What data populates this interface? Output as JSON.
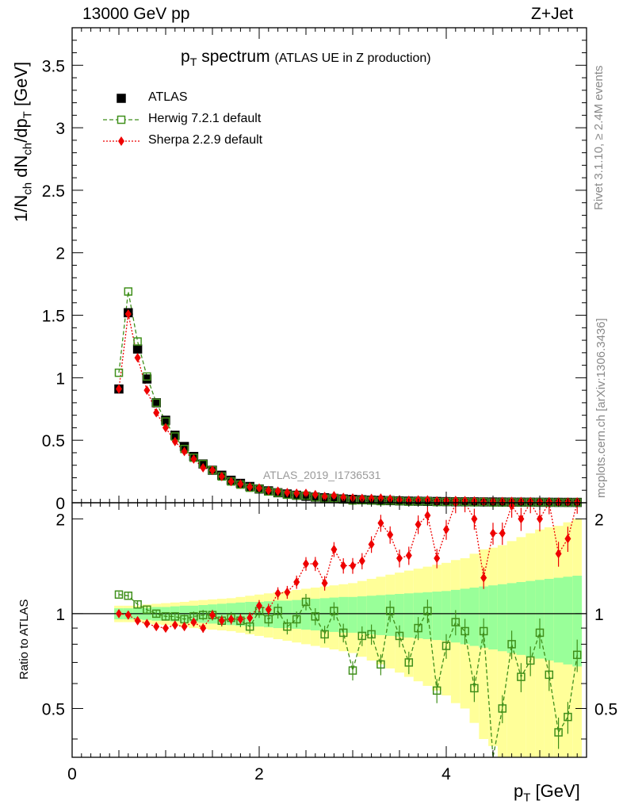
{
  "header": {
    "energy": "13000 GeV pp",
    "process": "Z+Jet"
  },
  "side_labels": {
    "rivet": "Rivet 3.1.10, ≥ 2.4M events",
    "mcplots": "mcplots.cern.ch [arXiv:1306.3436]"
  },
  "plot_title": {
    "main": "p",
    "main_sub": "T",
    "main_rest": " spectrum",
    "detail": "(ATLAS UE in Z production)"
  },
  "analysis_id": "ATLAS_2019_I1736531",
  "colors": {
    "atlas": "#000000",
    "herwig": "#3f8f1a",
    "sherpa": "#ee0000",
    "band_inner": "#99ff99",
    "band_outer": "#ffff99"
  },
  "chart_data": [
    {
      "type": "scatter",
      "title": "",
      "xlabel": "pT [GeV]",
      "ylabel": "1/Nch dNch/dpT [GeV]",
      "xlim": [
        0,
        5.5
      ],
      "ylim": [
        0,
        3.8
      ],
      "x_ticks": [
        0,
        2,
        4
      ],
      "y_ticks": [
        0,
        0.5,
        1,
        1.5,
        2,
        2.5,
        3,
        3.5
      ],
      "legend": "top-left",
      "x": [
        0.5,
        0.6,
        0.7,
        0.8,
        0.9,
        1.0,
        1.1,
        1.2,
        1.3,
        1.4,
        1.5,
        1.6,
        1.7,
        1.8,
        1.9,
        2.0,
        2.1,
        2.2,
        2.3,
        2.4,
        2.5,
        2.6,
        2.7,
        2.8,
        2.9,
        3.0,
        3.1,
        3.2,
        3.3,
        3.4,
        3.5,
        3.6,
        3.7,
        3.8,
        3.9,
        4.0,
        4.1,
        4.2,
        4.3,
        4.4,
        4.5,
        4.6,
        4.7,
        4.8,
        4.9,
        5.0,
        5.1,
        5.2,
        5.3,
        5.4
      ],
      "series": [
        {
          "name": "ATLAS",
          "values": [
            0.91,
            1.52,
            1.23,
            0.99,
            0.8,
            0.66,
            0.54,
            0.45,
            0.37,
            0.31,
            0.26,
            0.22,
            0.18,
            0.155,
            0.13,
            0.11,
            0.095,
            0.08,
            0.07,
            0.06,
            0.052,
            0.045,
            0.04,
            0.035,
            0.03,
            0.027,
            0.024,
            0.021,
            0.019,
            0.017,
            0.015,
            0.013,
            0.012,
            0.011,
            0.01,
            0.009,
            0.008,
            0.0075,
            0.007,
            0.0065,
            0.006,
            0.0055,
            0.005,
            0.0046,
            0.0042,
            0.0039,
            0.0036,
            0.0033,
            0.003,
            0.0028
          ]
        },
        {
          "name": "Herwig 7.2.1 default",
          "values": [
            1.04,
            1.69,
            1.29,
            1.01,
            0.8,
            0.65,
            0.53,
            0.43,
            0.36,
            0.31,
            0.26,
            0.21,
            0.17,
            0.145,
            0.12,
            0.11,
            0.09,
            0.08,
            0.064,
            0.057,
            0.057,
            0.044,
            0.034,
            0.036,
            0.026,
            0.018,
            0.02,
            0.018,
            0.013,
            0.017,
            0.013,
            0.009,
            0.011,
            0.011,
            0.006,
            0.007,
            0.0075,
            0.0066,
            0.004,
            0.0057,
            0.002,
            0.0027,
            0.004,
            0.0029,
            0.003,
            0.0034,
            0.0023,
            0.0014,
            0.0014,
            0.0021
          ]
        },
        {
          "name": "Sherpa 2.2.9 default",
          "values": [
            0.91,
            1.51,
            1.16,
            0.9,
            0.72,
            0.6,
            0.49,
            0.41,
            0.35,
            0.28,
            0.26,
            0.21,
            0.17,
            0.15,
            0.126,
            0.117,
            0.098,
            0.093,
            0.082,
            0.076,
            0.075,
            0.065,
            0.05,
            0.056,
            0.043,
            0.038,
            0.035,
            0.035,
            0.037,
            0.03,
            0.023,
            0.02,
            0.023,
            0.023,
            0.015,
            0.017,
            0.018,
            0.017,
            0.0145,
            0.0085,
            0.011,
            0.01,
            0.011,
            0.01,
            0.0095,
            0.0078,
            0.0078,
            0.0053,
            0.0053,
            0.0064
          ]
        }
      ]
    },
    {
      "type": "scatter",
      "title": "",
      "xlabel": "pT [GeV]",
      "ylabel": "Ratio to ATLAS",
      "xlim": [
        0,
        5.5
      ],
      "ylim": [
        0.35,
        2.25
      ],
      "x_ticks": [
        0,
        2,
        4
      ],
      "y_ticks": [
        0.5,
        1,
        2
      ],
      "reference_line": 1,
      "x": [
        0.5,
        0.6,
        0.7,
        0.8,
        0.9,
        1.0,
        1.1,
        1.2,
        1.3,
        1.4,
        1.5,
        1.6,
        1.7,
        1.8,
        1.9,
        2.0,
        2.1,
        2.2,
        2.3,
        2.4,
        2.5,
        2.6,
        2.7,
        2.8,
        2.9,
        3.0,
        3.1,
        3.2,
        3.3,
        3.4,
        3.5,
        3.6,
        3.7,
        3.8,
        3.9,
        4.0,
        4.1,
        4.2,
        4.3,
        4.4,
        4.5,
        4.6,
        4.7,
        4.8,
        4.9,
        5.0,
        5.1,
        5.2,
        5.3,
        5.4
      ],
      "band_inner": [
        0.04,
        0.04,
        0.04,
        0.045,
        0.05,
        0.05,
        0.055,
        0.06,
        0.06,
        0.065,
        0.07,
        0.075,
        0.08,
        0.085,
        0.09,
        0.09,
        0.095,
        0.1,
        0.1,
        0.105,
        0.11,
        0.115,
        0.12,
        0.125,
        0.13,
        0.13,
        0.135,
        0.14,
        0.145,
        0.15,
        0.155,
        0.16,
        0.165,
        0.17,
        0.175,
        0.18,
        0.19,
        0.2,
        0.21,
        0.22,
        0.23,
        0.24,
        0.25,
        0.26,
        0.27,
        0.28,
        0.29,
        0.3,
        0.31,
        0.32
      ],
      "band_outer": [
        0.06,
        0.06,
        0.06,
        0.07,
        0.075,
        0.08,
        0.085,
        0.09,
        0.1,
        0.105,
        0.11,
        0.115,
        0.12,
        0.13,
        0.14,
        0.15,
        0.16,
        0.17,
        0.18,
        0.19,
        0.2,
        0.21,
        0.22,
        0.23,
        0.24,
        0.25,
        0.27,
        0.29,
        0.31,
        0.33,
        0.35,
        0.37,
        0.39,
        0.41,
        0.43,
        0.45,
        0.48,
        0.5,
        0.55,
        0.6,
        0.62,
        0.65,
        0.7,
        0.75,
        0.8,
        0.85,
        0.88,
        0.9,
        0.95,
        1.0
      ],
      "series": [
        {
          "name": "Herwig 7.2.1 default",
          "values": [
            1.15,
            1.14,
            1.07,
            1.03,
            1.0,
            0.98,
            0.98,
            0.96,
            0.98,
            0.99,
            0.99,
            0.95,
            0.97,
            0.95,
            0.91,
            1.02,
            0.96,
            1.02,
            0.91,
            0.96,
            1.09,
            0.98,
            0.86,
            1.02,
            0.87,
            0.66,
            0.85,
            0.86,
            0.69,
            1.02,
            0.85,
            0.7,
            0.9,
            1.02,
            0.57,
            0.79,
            0.94,
            0.88,
            0.58,
            0.88,
            0.33,
            0.5,
            0.8,
            0.63,
            0.71,
            0.87,
            0.64,
            0.42,
            0.47,
            0.74
          ]
        },
        {
          "name": "Sherpa 2.2.9 default",
          "values": [
            1.0,
            0.99,
            0.95,
            0.93,
            0.91,
            0.9,
            0.92,
            0.91,
            0.94,
            0.9,
            0.99,
            0.95,
            0.96,
            0.96,
            0.97,
            1.06,
            1.03,
            1.16,
            1.17,
            1.26,
            1.44,
            1.44,
            1.25,
            1.6,
            1.42,
            1.42,
            1.47,
            1.66,
            1.94,
            1.78,
            1.5,
            1.53,
            1.92,
            2.05,
            1.5,
            1.85,
            2.25,
            2.27,
            2.0,
            1.3,
            1.8,
            1.8,
            2.2,
            2.0,
            2.28,
            2.0,
            2.27,
            1.55,
            1.73,
            2.29
          ]
        }
      ]
    }
  ]
}
